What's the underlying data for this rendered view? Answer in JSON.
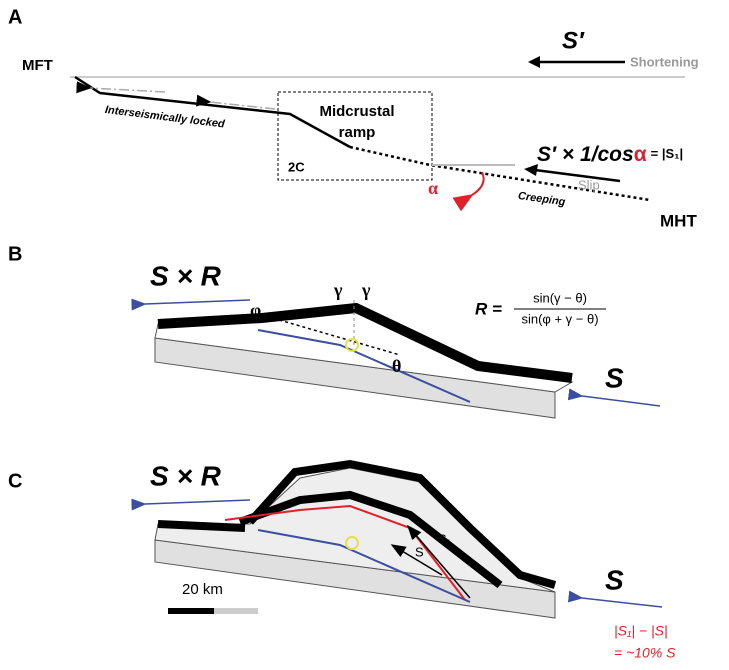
{
  "panel_a": {
    "label": "A",
    "mft": "MFT",
    "s_prime": "S′",
    "shortening": "Shortening",
    "locked": "Interseismically locked",
    "ramp_line1": "Midcrustal",
    "ramp_line2": "ramp",
    "box_label": "2C",
    "slip_eq_prefix": "S′ × 1/cos",
    "slip_eq_alpha": "α",
    "slip_eq_suffix": "= |S₁|",
    "slip": "Slip",
    "alpha": "α",
    "creeping": "Creeping",
    "mht": "MHT"
  },
  "panel_b": {
    "label": "B",
    "s_times_r": "S × R",
    "phi": "φ",
    "gamma_left": "γ",
    "gamma_right": "γ",
    "theta": "θ",
    "r_lhs": "R =",
    "r_numerator": "sin(γ − θ)",
    "r_denominator": "sin(φ + γ − θ)",
    "s": "S"
  },
  "panel_c": {
    "label": "C",
    "s_times_r": "S × R",
    "s_vector": "S",
    "s1_vector": "S₁",
    "s": "S",
    "scale": "20 km",
    "diff_line1": "|S₁| − |S|",
    "diff_line2": "= ~10% S"
  }
}
